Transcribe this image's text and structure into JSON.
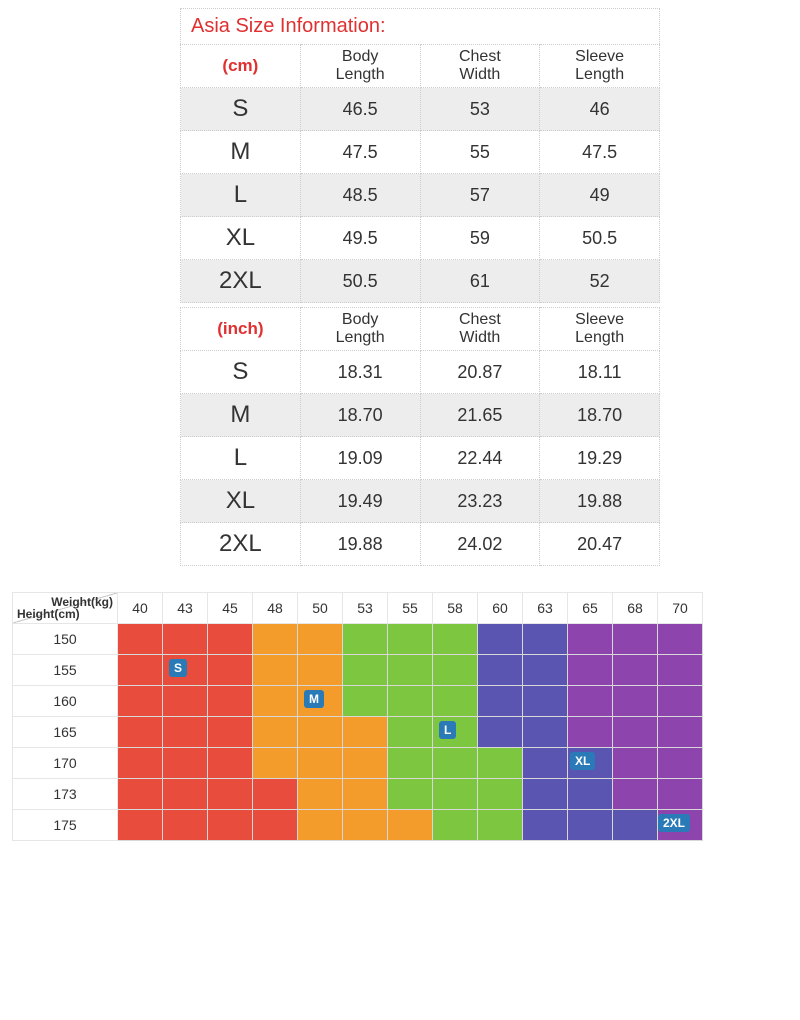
{
  "title": "Asia Size Information:",
  "size_table_cm": {
    "unit_label": "(cm)",
    "columns": [
      "Body\nLength",
      "Chest\nWidth",
      "Sleeve\nLength"
    ],
    "rows": [
      {
        "size": "S",
        "vals": [
          "46.5",
          "53",
          "46"
        ]
      },
      {
        "size": "M",
        "vals": [
          "47.5",
          "55",
          "47.5"
        ]
      },
      {
        "size": "L",
        "vals": [
          "48.5",
          "57",
          "49"
        ]
      },
      {
        "size": "XL",
        "vals": [
          "49.5",
          "59",
          "50.5"
        ]
      },
      {
        "size": "2XL",
        "vals": [
          "50.5",
          "61",
          "52"
        ]
      }
    ],
    "shade_rows": [
      0,
      2,
      4
    ]
  },
  "size_table_inch": {
    "unit_label": "(inch)",
    "columns": [
      "Body\nLength",
      "Chest\nWidth",
      "Sleeve\nLength"
    ],
    "rows": [
      {
        "size": "S",
        "vals": [
          "18.31",
          "20.87",
          "18.11"
        ]
      },
      {
        "size": "M",
        "vals": [
          "18.70",
          "21.65",
          "18.70"
        ]
      },
      {
        "size": "L",
        "vals": [
          "19.09",
          "22.44",
          "19.29"
        ]
      },
      {
        "size": "XL",
        "vals": [
          "19.49",
          "23.23",
          "19.88"
        ]
      },
      {
        "size": "2XL",
        "vals": [
          "19.88",
          "24.02",
          "20.47"
        ]
      }
    ],
    "shade_rows": [
      1,
      3
    ]
  },
  "heatmap": {
    "corner_weight_label": "Weight(kg)",
    "corner_height_label": "Height(cm)",
    "weights": [
      "40",
      "43",
      "45",
      "48",
      "50",
      "53",
      "55",
      "58",
      "60",
      "63",
      "65",
      "68",
      "70"
    ],
    "heights": [
      "150",
      "155",
      "160",
      "165",
      "170",
      "173",
      "175"
    ],
    "palette": {
      "R": "#e84c3d",
      "O": "#f39c2c",
      "G": "#7dc63f",
      "B": "#5a55b0",
      "P": "#8e44ad"
    },
    "cell_border": "#d8d8d8",
    "grid": [
      [
        "R",
        "R",
        "R",
        "O",
        "O",
        "G",
        "G",
        "G",
        "B",
        "B",
        "P",
        "P",
        "P"
      ],
      [
        "R",
        "R",
        "R",
        "O",
        "O",
        "G",
        "G",
        "G",
        "B",
        "B",
        "P",
        "P",
        "P"
      ],
      [
        "R",
        "R",
        "R",
        "O",
        "O",
        "G",
        "G",
        "G",
        "B",
        "B",
        "P",
        "P",
        "P"
      ],
      [
        "R",
        "R",
        "R",
        "O",
        "O",
        "O",
        "G",
        "G",
        "B",
        "B",
        "P",
        "P",
        "P"
      ],
      [
        "R",
        "R",
        "R",
        "O",
        "O",
        "O",
        "G",
        "G",
        "G",
        "B",
        "B",
        "P",
        "P"
      ],
      [
        "R",
        "R",
        "R",
        "R",
        "O",
        "O",
        "G",
        "G",
        "G",
        "B",
        "B",
        "P",
        "P"
      ],
      [
        "R",
        "R",
        "R",
        "R",
        "O",
        "O",
        "O",
        "G",
        "G",
        "B",
        "B",
        "B",
        "P"
      ]
    ],
    "badges": [
      {
        "row": 1,
        "col": 1,
        "label": "S",
        "offx": 6,
        "offy": 4
      },
      {
        "row": 2,
        "col": 4,
        "label": "M",
        "offx": 6,
        "offy": 4
      },
      {
        "row": 3,
        "col": 7,
        "label": "L",
        "offx": 6,
        "offy": 4
      },
      {
        "row": 4,
        "col": 10,
        "label": "XL",
        "offx": 2,
        "offy": 4
      },
      {
        "row": 6,
        "col": 12,
        "label": "2XL",
        "offx": 0,
        "offy": 4
      }
    ],
    "badge_bg": "#2a7ab8",
    "badge_fg": "#ffffff"
  },
  "style": {
    "table_border_color": "#cccccc",
    "shade_bg": "#ededed",
    "title_color": "#e03030",
    "body_font": "Arial"
  }
}
